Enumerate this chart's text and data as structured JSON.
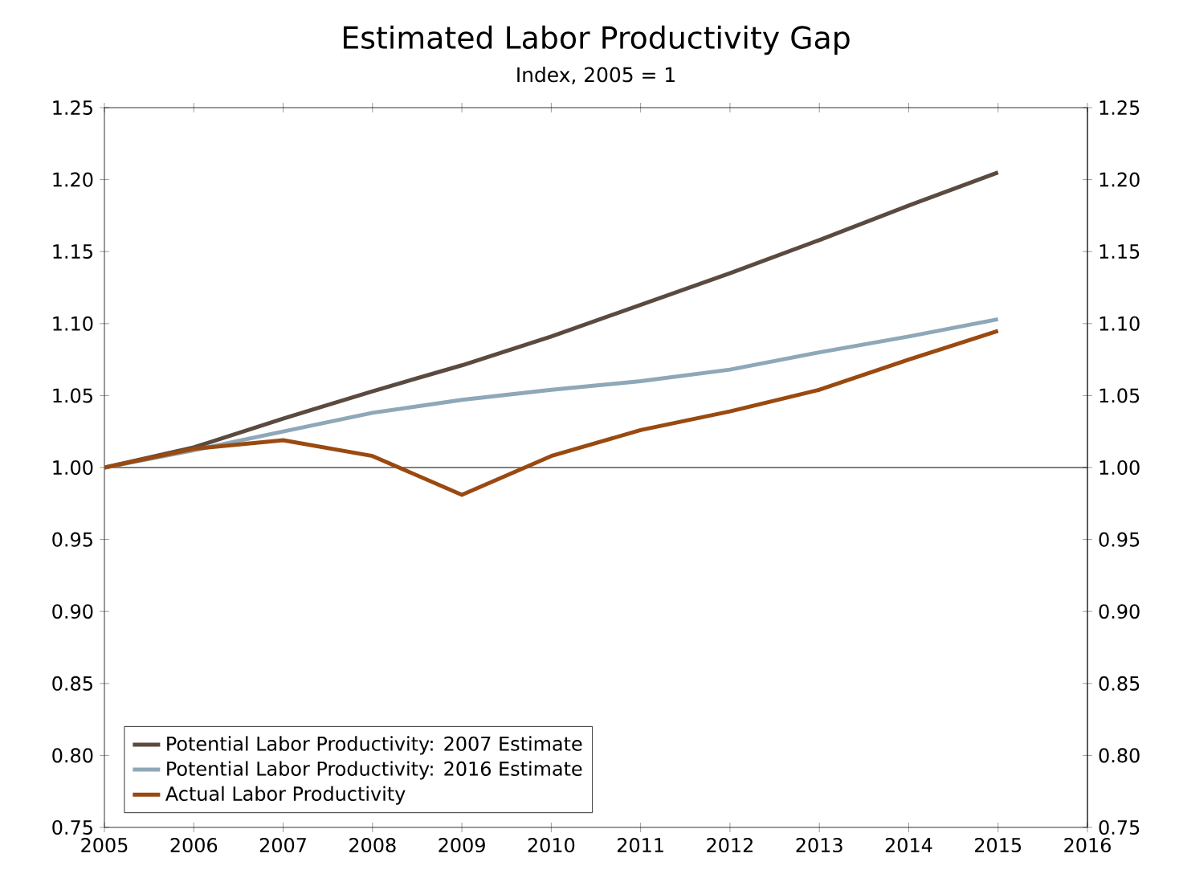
{
  "chart_data": {
    "type": "line",
    "title": "Estimated Labor Productivity Gap",
    "subtitle": "Index, 2005 = 1",
    "x": [
      2005,
      2006,
      2007,
      2008,
      2009,
      2010,
      2011,
      2012,
      2013,
      2014,
      2015
    ],
    "series": [
      {
        "name": "Potential Labor Productivity: 2007 Estimate",
        "color": "#5a4a3f",
        "values": [
          1.0,
          1.014,
          1.034,
          1.053,
          1.071,
          1.091,
          1.113,
          1.135,
          1.158,
          1.182,
          1.205
        ]
      },
      {
        "name": "Potential Labor Productivity: 2016 Estimate",
        "color": "#8fa8b8",
        "values": [
          1.0,
          1.012,
          1.025,
          1.038,
          1.047,
          1.054,
          1.06,
          1.068,
          1.08,
          1.091,
          1.103
        ]
      },
      {
        "name": "Actual Labor Productivity",
        "color": "#9a4a10",
        "values": [
          1.0,
          1.013,
          1.019,
          1.008,
          0.981,
          1.008,
          1.026,
          1.039,
          1.054,
          1.075,
          1.095
        ]
      }
    ],
    "xlim": [
      2005,
      2016
    ],
    "xticks": [
      2005,
      2006,
      2007,
      2008,
      2009,
      2010,
      2011,
      2012,
      2013,
      2014,
      2015,
      2016
    ],
    "ylim": [
      0.75,
      1.25
    ],
    "yticks": [
      {
        "value": 0.75,
        "label": "0.75"
      },
      {
        "value": 0.8,
        "label": "0.80"
      },
      {
        "value": 0.85,
        "label": "0.85"
      },
      {
        "value": 0.9,
        "label": "0.90"
      },
      {
        "value": 0.95,
        "label": "0.95"
      },
      {
        "value": 1.0,
        "label": "1.00"
      },
      {
        "value": 1.05,
        "label": "1.05"
      },
      {
        "value": 1.1,
        "label": "1.10"
      },
      {
        "value": 1.15,
        "label": "1.15"
      },
      {
        "value": 1.2,
        "label": "1.20"
      },
      {
        "value": 1.25,
        "label": "1.25"
      }
    ],
    "y2lim": [
      0.75,
      1.25
    ],
    "y2ticks": [
      {
        "value": 0.75,
        "label": "0.75"
      },
      {
        "value": 0.8,
        "label": "0.80"
      },
      {
        "value": 0.85,
        "label": "0.85"
      },
      {
        "value": 0.9,
        "label": "0.90"
      },
      {
        "value": 0.95,
        "label": "0.95"
      },
      {
        "value": 1.0,
        "label": "1.00"
      },
      {
        "value": 1.05,
        "label": "1.05"
      },
      {
        "value": 1.1,
        "label": "1.10"
      },
      {
        "value": 1.15,
        "label": "1.15"
      },
      {
        "value": 1.2,
        "label": "1.20"
      },
      {
        "value": 1.25,
        "label": "1.25"
      }
    ],
    "ref_lines": [
      {
        "axis": "y",
        "value": 1.0,
        "color": "#808080"
      }
    ],
    "legend": "bottom left"
  }
}
